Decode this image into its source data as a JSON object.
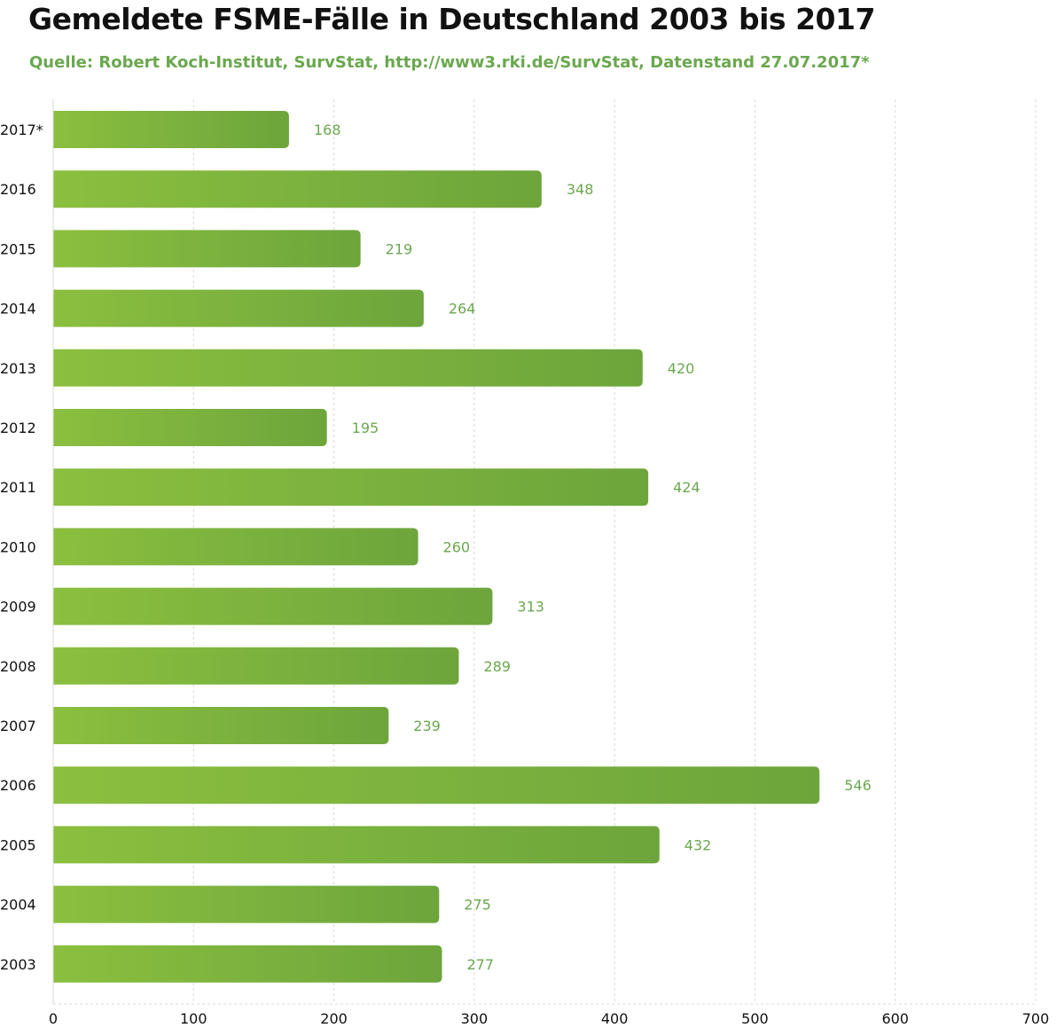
{
  "title": "Gemeldete FSME-Fälle in Deutschland 2003 bis 2017",
  "subtitle": "Quelle: Robert Koch-Institut, SurvStat, http://www3.rki.de/SurvStat, Datenstand 27.07.2017*",
  "colors": {
    "bar_start": "#8bbf3f",
    "bar_end": "#6da53c",
    "label": "#6aa84f",
    "grid": "#d9d9d9"
  },
  "chart_data": {
    "type": "bar",
    "orientation": "horizontal",
    "title": "Gemeldete FSME-Fälle in Deutschland 2003 bis 2017",
    "subtitle": "Quelle: Robert Koch-Institut, SurvStat, http://www3.rki.de/SurvStat, Datenstand 27.07.2017*",
    "categories": [
      "2017*",
      "2016",
      "2015",
      "2014",
      "2013",
      "2012",
      "2011",
      "2010",
      "2009",
      "2008",
      "2007",
      "2006",
      "2005",
      "2004",
      "2003"
    ],
    "values": [
      168,
      348,
      219,
      264,
      420,
      195,
      424,
      260,
      313,
      289,
      239,
      546,
      432,
      275,
      277
    ],
    "xlim": [
      0,
      700
    ],
    "xticks": [
      0,
      100,
      200,
      300,
      400,
      500,
      600,
      700
    ],
    "grid": "vertical dashed",
    "legend": "none"
  }
}
